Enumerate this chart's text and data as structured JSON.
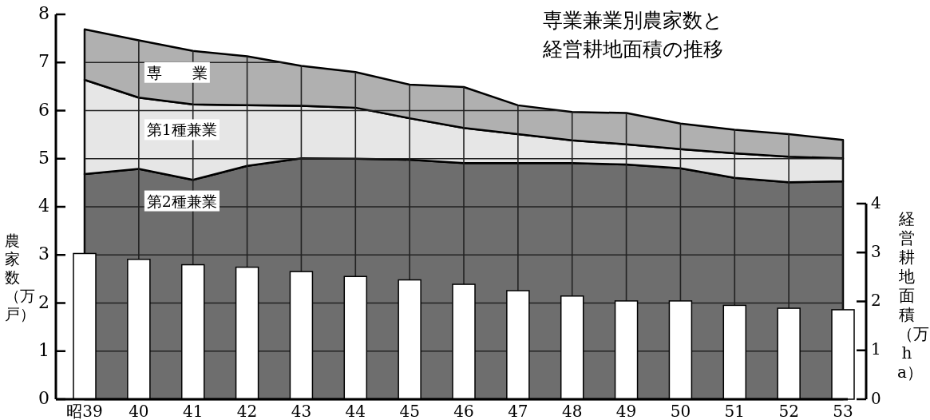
{
  "chart_data": {
    "type": "area",
    "title": "専業兼業別農家数と経営耕地面積の推移",
    "ylabel": "農家数（万戸）",
    "y2label": "経営耕地面積（万ha）",
    "categories": [
      "昭39",
      "40",
      "41",
      "42",
      "43",
      "44",
      "45",
      "46",
      "47",
      "48",
      "49",
      "50",
      "51",
      "52",
      "53"
    ],
    "stacked": true,
    "grid": true,
    "ylim": [
      0,
      8
    ],
    "yticks": [
      0,
      1,
      2,
      3,
      4,
      5,
      6,
      7,
      8
    ],
    "y2lim": [
      0,
      4
    ],
    "y2ticks": [
      0,
      1,
      2,
      3,
      4
    ],
    "series": [
      {
        "name": "第2種兼業",
        "color": "#6e6e6e",
        "values": [
          4.68,
          4.79,
          4.56,
          4.85,
          5.01,
          5.0,
          4.98,
          4.91,
          4.91,
          4.91,
          4.88,
          4.8,
          4.6,
          4.51,
          4.53
        ]
      },
      {
        "name": "第1種兼業",
        "color": "#e6e6e6",
        "values": [
          1.96,
          1.48,
          1.57,
          1.26,
          1.09,
          1.06,
          0.86,
          0.73,
          0.6,
          0.47,
          0.42,
          0.4,
          0.51,
          0.53,
          0.48
        ]
      },
      {
        "name": "専　　業",
        "color": "#b0b0b0",
        "values": [
          1.05,
          1.19,
          1.11,
          1.02,
          0.83,
          0.74,
          0.7,
          0.85,
          0.6,
          0.59,
          0.65,
          0.53,
          0.49,
          0.47,
          0.38
        ]
      },
      {
        "type": "bar",
        "axis": "y2",
        "color": "#ffffff",
        "values": [
          2.98,
          2.86,
          2.75,
          2.7,
          2.61,
          2.51,
          2.44,
          2.35,
          2.22,
          2.11,
          2.01,
          2.01,
          1.92,
          1.86,
          1.83
        ]
      }
    ]
  }
}
